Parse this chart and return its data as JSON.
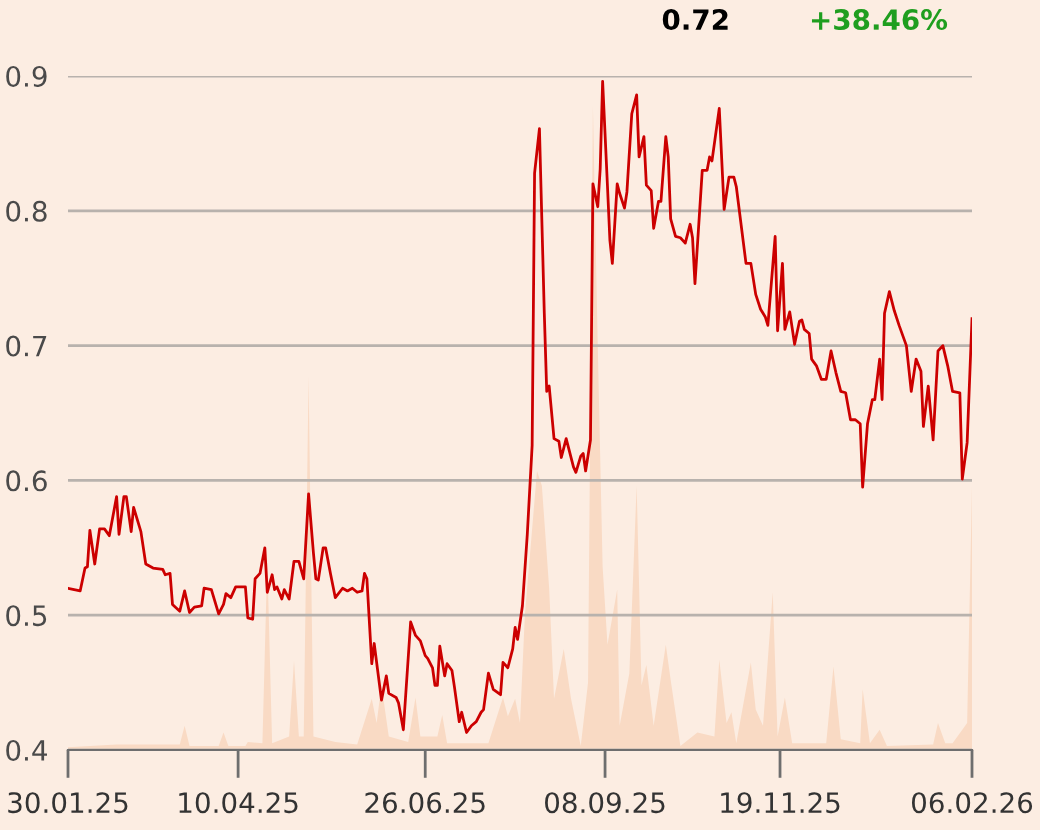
{
  "chart_data": {
    "type": "line",
    "annotations": [
      "0.72",
      "+38.46%"
    ],
    "xlim": [
      "2025-01-30",
      "2026-02-06"
    ],
    "xticks": [
      {
        "value": "2025-01-30",
        "label": "30.01.25"
      },
      {
        "value": "2025-04-10",
        "label": "10.04.25"
      },
      {
        "value": "2025-06-26",
        "label": "26.06.25"
      },
      {
        "value": "2025-09-08",
        "label": "08.09.25"
      },
      {
        "value": "2025-11-19",
        "label": "19.11.25"
      },
      {
        "value": "2026-02-06",
        "label": "06.02.26"
      }
    ],
    "ylim": [
      0.4,
      0.9
    ],
    "yticks": [
      0.4,
      0.5,
      0.6,
      0.7,
      0.8,
      0.9
    ],
    "grid": "y",
    "series": [
      {
        "type": "area",
        "color": "#f9dac4",
        "x": [
          "2025-01-30",
          "2025-02-19",
          "2025-03-07",
          "2025-03-17",
          "2025-03-19",
          "2025-03-21",
          "2025-04-02",
          "2025-04-04",
          "2025-04-06",
          "2025-04-13",
          "2025-04-14",
          "2025-04-20",
          "2025-04-22",
          "2025-04-24",
          "2025-05-01",
          "2025-05-03",
          "2025-05-05",
          "2025-05-07",
          "2025-05-09",
          "2025-05-11",
          "2025-05-20",
          "2025-05-29",
          "2025-06-04",
          "2025-06-06",
          "2025-06-08",
          "2025-06-11",
          "2025-06-19",
          "2025-06-22",
          "2025-06-24",
          "2025-07-01",
          "2025-07-03",
          "2025-07-05",
          "2025-07-22",
          "2025-07-28",
          "2025-07-30",
          "2025-08-02",
          "2025-08-04",
          "2025-08-06",
          "2025-08-11",
          "2025-08-13",
          "2025-08-16",
          "2025-08-18",
          "2025-08-22",
          "2025-08-25",
          "2025-08-29",
          "2025-09-01",
          "2025-09-03",
          "2025-09-05",
          "2025-09-07",
          "2025-09-09",
          "2025-09-13",
          "2025-09-14",
          "2025-09-18",
          "2025-09-21",
          "2025-09-23",
          "2025-09-25",
          "2025-09-28",
          "2025-10-03",
          "2025-10-05",
          "2025-10-09",
          "2025-10-16",
          "2025-10-23",
          "2025-10-25",
          "2025-10-28",
          "2025-10-30",
          "2025-11-01",
          "2025-11-07",
          "2025-11-09",
          "2025-11-12",
          "2025-11-16",
          "2025-11-18",
          "2025-11-21",
          "2025-11-24",
          "2025-12-08",
          "2025-12-11",
          "2025-12-14",
          "2025-12-22",
          "2025-12-23",
          "2025-12-26",
          "2025-12-30",
          "2026-01-02",
          "2026-01-21",
          "2026-01-23",
          "2026-01-26",
          "2026-01-29",
          "2026-02-04",
          "2026-02-06"
        ],
        "values": [
          0.402,
          0.404,
          0.404,
          0.404,
          0.418,
          0.403,
          0.403,
          0.413,
          0.403,
          0.403,
          0.406,
          0.405,
          0.541,
          0.405,
          0.41,
          0.466,
          0.41,
          0.41,
          0.677,
          0.41,
          0.406,
          0.404,
          0.438,
          0.42,
          0.448,
          0.41,
          0.406,
          0.439,
          0.41,
          0.41,
          0.426,
          0.405,
          0.405,
          0.439,
          0.425,
          0.438,
          0.42,
          0.5,
          0.607,
          0.596,
          0.52,
          0.438,
          0.475,
          0.438,
          0.403,
          0.45,
          0.878,
          0.7,
          0.536,
          0.478,
          0.519,
          0.418,
          0.457,
          0.596,
          0.448,
          0.463,
          0.418,
          0.478,
          0.452,
          0.403,
          0.413,
          0.41,
          0.467,
          0.42,
          0.428,
          0.405,
          0.465,
          0.43,
          0.418,
          0.517,
          0.41,
          0.439,
          0.405,
          0.405,
          0.462,
          0.408,
          0.405,
          0.445,
          0.405,
          0.415,
          0.403,
          0.404,
          0.42,
          0.405,
          0.405,
          0.42,
          0.596
        ]
      },
      {
        "color": "#cc0000",
        "x": [
          "2025-01-30",
          "2025-02-04",
          "2025-02-06",
          "2025-02-07",
          "2025-02-08",
          "2025-02-10",
          "2025-02-12",
          "2025-02-14",
          "2025-02-16",
          "2025-02-19",
          "2025-02-20",
          "2025-02-22",
          "2025-02-23",
          "2025-02-25",
          "2025-02-26",
          "2025-03-01",
          "2025-03-03",
          "2025-03-06",
          "2025-03-10",
          "2025-03-11",
          "2025-03-13",
          "2025-03-14",
          "2025-03-17",
          "2025-03-19",
          "2025-03-21",
          "2025-03-23",
          "2025-03-26",
          "2025-03-27",
          "2025-03-30",
          "2025-04-02",
          "2025-04-04",
          "2025-04-05",
          "2025-04-07",
          "2025-04-09",
          "2025-04-13",
          "2025-04-14",
          "2025-04-16",
          "2025-04-17",
          "2025-04-19",
          "2025-04-21",
          "2025-04-22",
          "2025-04-24",
          "2025-04-25",
          "2025-04-26",
          "2025-04-28",
          "2025-04-29",
          "2025-05-01",
          "2025-05-03",
          "2025-05-05",
          "2025-05-07",
          "2025-05-09",
          "2025-05-11",
          "2025-05-12",
          "2025-05-13",
          "2025-05-15",
          "2025-05-16",
          "2025-05-18",
          "2025-05-20",
          "2025-05-23",
          "2025-05-25",
          "2025-05-27",
          "2025-05-29",
          "2025-05-31",
          "2025-06-01",
          "2025-06-02",
          "2025-06-04",
          "2025-06-05",
          "2025-06-08",
          "2025-06-10",
          "2025-06-11",
          "2025-06-14",
          "2025-06-15",
          "2025-06-17",
          "2025-06-20",
          "2025-06-22",
          "2025-06-24",
          "2025-06-26",
          "2025-06-27",
          "2025-06-29",
          "2025-06-30",
          "2025-07-01",
          "2025-07-02",
          "2025-07-04",
          "2025-07-05",
          "2025-07-07",
          "2025-07-08",
          "2025-07-10",
          "2025-07-11",
          "2025-07-13",
          "2025-07-15",
          "2025-07-17",
          "2025-07-19",
          "2025-07-20",
          "2025-07-22",
          "2025-07-24",
          "2025-07-27",
          "2025-07-28",
          "2025-07-30",
          "2025-08-01",
          "2025-08-02",
          "2025-08-03",
          "2025-08-05",
          "2025-08-07",
          "2025-08-09",
          "2025-08-10",
          "2025-08-12",
          "2025-08-14",
          "2025-08-15",
          "2025-08-16",
          "2025-08-18",
          "2025-08-20",
          "2025-08-21",
          "2025-08-23",
          "2025-08-26",
          "2025-08-27",
          "2025-08-29",
          "2025-08-30",
          "2025-08-31",
          "2025-09-02",
          "2025-09-03",
          "2025-09-05",
          "2025-09-06",
          "2025-09-07",
          "2025-09-09",
          "2025-09-10",
          "2025-09-11",
          "2025-09-13",
          "2025-09-14",
          "2025-09-16",
          "2025-09-17",
          "2025-09-19",
          "2025-09-21",
          "2025-09-22",
          "2025-09-24",
          "2025-09-25",
          "2025-09-27",
          "2025-09-28",
          "2025-09-30",
          "2025-10-01",
          "2025-10-03",
          "2025-10-04",
          "2025-10-05",
          "2025-10-07",
          "2025-10-09",
          "2025-10-11",
          "2025-10-13",
          "2025-10-14",
          "2025-10-15",
          "2025-10-18",
          "2025-10-20",
          "2025-10-21",
          "2025-10-22",
          "2025-10-25",
          "2025-10-27",
          "2025-10-29",
          "2025-10-31",
          "2025-11-01",
          "2025-11-05",
          "2025-11-07",
          "2025-11-09",
          "2025-11-11",
          "2025-11-13",
          "2025-11-14",
          "2025-11-17",
          "2025-11-18",
          "2025-11-20",
          "2025-11-21",
          "2025-11-23",
          "2025-11-25",
          "2025-11-27",
          "2025-11-28",
          "2025-11-29",
          "2025-12-01",
          "2025-12-02",
          "2025-12-04",
          "2025-12-06",
          "2025-12-08",
          "2025-12-10",
          "2025-12-12",
          "2025-12-14",
          "2025-12-16",
          "2025-12-18",
          "2025-12-20",
          "2025-12-22",
          "2025-12-23",
          "2025-12-25",
          "2025-12-27",
          "2025-12-28",
          "2025-12-30",
          "2025-12-31",
          "2026-01-01",
          "2026-01-03",
          "2026-01-05",
          "2026-01-07",
          "2026-01-10",
          "2026-01-12",
          "2026-01-14",
          "2026-01-16",
          "2026-01-17",
          "2026-01-19",
          "2026-01-21",
          "2026-01-23",
          "2026-01-25",
          "2026-01-27",
          "2026-01-29",
          "2026-02-01",
          "2026-02-02",
          "2026-02-04",
          "2026-02-06"
        ],
        "values": [
          0.52,
          0.518,
          0.535,
          0.536,
          0.563,
          0.538,
          0.564,
          0.564,
          0.559,
          0.588,
          0.56,
          0.588,
          0.588,
          0.562,
          0.58,
          0.562,
          0.538,
          0.535,
          0.534,
          0.53,
          0.531,
          0.508,
          0.503,
          0.518,
          0.502,
          0.506,
          0.507,
          0.52,
          0.519,
          0.501,
          0.508,
          0.516,
          0.513,
          0.521,
          0.521,
          0.498,
          0.497,
          0.527,
          0.531,
          0.55,
          0.517,
          0.53,
          0.519,
          0.521,
          0.512,
          0.519,
          0.512,
          0.54,
          0.54,
          0.527,
          0.59,
          0.546,
          0.527,
          0.526,
          0.55,
          0.55,
          0.531,
          0.513,
          0.52,
          0.518,
          0.52,
          0.517,
          0.518,
          0.531,
          0.527,
          0.464,
          0.479,
          0.437,
          0.455,
          0.442,
          0.439,
          0.435,
          0.415,
          0.495,
          0.485,
          0.481,
          0.47,
          0.468,
          0.461,
          0.448,
          0.448,
          0.477,
          0.455,
          0.464,
          0.459,
          0.447,
          0.421,
          0.428,
          0.413,
          0.418,
          0.421,
          0.428,
          0.43,
          0.457,
          0.445,
          0.441,
          0.465,
          0.461,
          0.475,
          0.491,
          0.482,
          0.507,
          0.56,
          0.626,
          0.828,
          0.861,
          0.724,
          0.666,
          0.67,
          0.631,
          0.629,
          0.617,
          0.631,
          0.61,
          0.606,
          0.618,
          0.62,
          0.607,
          0.63,
          0.82,
          0.803,
          0.831,
          0.896,
          0.818,
          0.778,
          0.761,
          0.82,
          0.813,
          0.802,
          0.814,
          0.872,
          0.886,
          0.84,
          0.855,
          0.819,
          0.815,
          0.787,
          0.807,
          0.807,
          0.855,
          0.84,
          0.794,
          0.781,
          0.78,
          0.776,
          0.79,
          0.78,
          0.746,
          0.83,
          0.83,
          0.84,
          0.837,
          0.876,
          0.801,
          0.825,
          0.825,
          0.818,
          0.761,
          0.761,
          0.738,
          0.727,
          0.721,
          0.715,
          0.781,
          0.711,
          0.761,
          0.712,
          0.725,
          0.701,
          0.718,
          0.719,
          0.712,
          0.709,
          0.69,
          0.685,
          0.675,
          0.675,
          0.696,
          0.68,
          0.666,
          0.665,
          0.645,
          0.645,
          0.642,
          0.595,
          0.642,
          0.66,
          0.66,
          0.69,
          0.66,
          0.724,
          0.74,
          0.726,
          0.715,
          0.7,
          0.666,
          0.69,
          0.681,
          0.64,
          0.67,
          0.63,
          0.696,
          0.7,
          0.685,
          0.666,
          0.665,
          0.601,
          0.628,
          0.72
        ]
      }
    ]
  }
}
